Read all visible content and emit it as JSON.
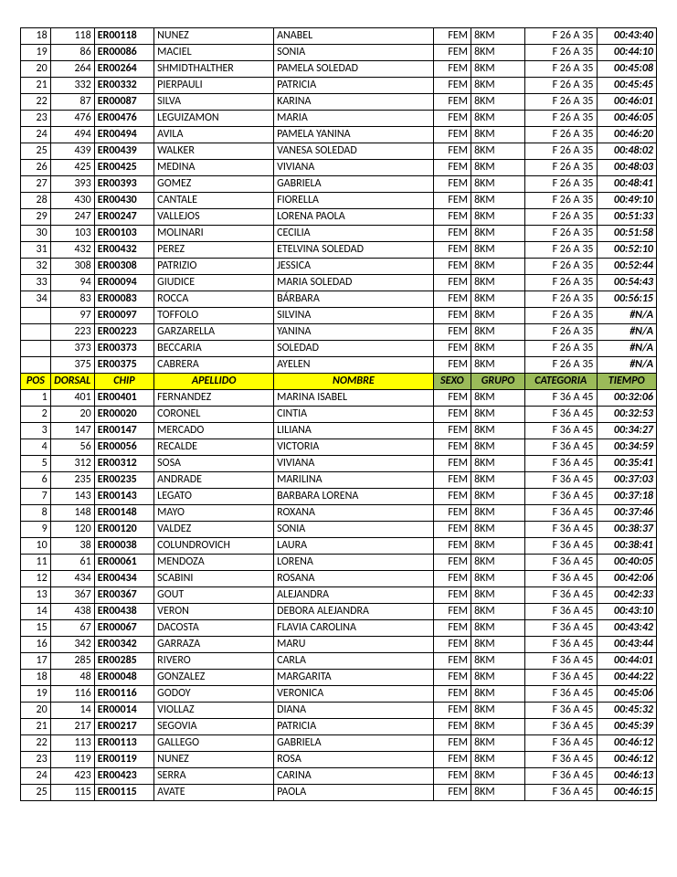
{
  "columns": [
    "POS",
    "DORSAL",
    "CHIP",
    "APELLIDO",
    "NOMBRE",
    "SEXO",
    "GRUPO",
    "CATEGORIA",
    "TIEMPO"
  ],
  "headerColors": [
    "yellow",
    "yellow",
    "yellow",
    "yellow",
    "yellow",
    "green",
    "green",
    "green",
    "green"
  ],
  "section1": [
    [
      "18",
      "118",
      "ER00118",
      "NUNEZ",
      "ANABEL",
      "FEM",
      "8KM",
      "F 26 A 35",
      "00:43:40"
    ],
    [
      "19",
      "86",
      "ER00086",
      "MACIEL",
      "SONIA",
      "FEM",
      "8KM",
      "F 26 A 35",
      "00:44:10"
    ],
    [
      "20",
      "264",
      "ER00264",
      "SHMIDTHALTHER",
      "PAMELA SOLEDAD",
      "FEM",
      "8KM",
      "F 26 A 35",
      "00:45:08"
    ],
    [
      "21",
      "332",
      "ER00332",
      "PIERPAULI",
      "PATRICIA",
      "FEM",
      "8KM",
      "F 26 A 35",
      "00:45:45"
    ],
    [
      "22",
      "87",
      "ER00087",
      "SILVA",
      "KARINA",
      "FEM",
      "8KM",
      "F 26 A 35",
      "00:46:01"
    ],
    [
      "23",
      "476",
      "ER00476",
      "LEGUIZAMON",
      "MARIA",
      "FEM",
      "8KM",
      "F 26 A 35",
      "00:46:05"
    ],
    [
      "24",
      "494",
      "ER00494",
      "AVILA",
      "PAMELA YANINA",
      "FEM",
      "8KM",
      "F 26 A 35",
      "00:46:20"
    ],
    [
      "25",
      "439",
      "ER00439",
      "WALKER",
      "VANESA SOLEDAD",
      "FEM",
      "8KM",
      "F 26 A 35",
      "00:48:02"
    ],
    [
      "26",
      "425",
      "ER00425",
      "MEDINA",
      "VIVIANA",
      "FEM",
      "8KM",
      "F 26 A 35",
      "00:48:03"
    ],
    [
      "27",
      "393",
      "ER00393",
      "GOMEZ",
      "GABRIELA",
      "FEM",
      "8KM",
      "F 26 A 35",
      "00:48:41"
    ],
    [
      "28",
      "430",
      "ER00430",
      "CANTALE",
      "FIORELLA",
      "FEM",
      "8KM",
      "F 26 A 35",
      "00:49:10"
    ],
    [
      "29",
      "247",
      "ER00247",
      "VALLEJOS",
      "LORENA PAOLA",
      "FEM",
      "8KM",
      "F 26 A 35",
      "00:51:33"
    ],
    [
      "30",
      "103",
      "ER00103",
      "MOLINARI",
      "CECILIA",
      "FEM",
      "8KM",
      "F 26 A 35",
      "00:51:58"
    ],
    [
      "31",
      "432",
      "ER00432",
      "PEREZ",
      "ETELVINA SOLEDAD",
      "FEM",
      "8KM",
      "F 26 A 35",
      "00:52:10"
    ],
    [
      "32",
      "308",
      "ER00308",
      "PATRIZIO",
      "JESSICA",
      "FEM",
      "8KM",
      "F 26 A 35",
      "00:52:44"
    ],
    [
      "33",
      "94",
      "ER00094",
      "GIUDICE",
      "MARIA SOLEDAD",
      "FEM",
      "8KM",
      "F 26 A 35",
      "00:54:43"
    ],
    [
      "34",
      "83",
      "ER00083",
      "ROCCA",
      "BÁRBARA",
      "FEM",
      "8KM",
      "F 26 A 35",
      "00:56:15"
    ],
    [
      "",
      "97",
      "ER00097",
      "TOFFOLO",
      "SILVINA",
      "FEM",
      "8KM",
      "F 26 A 35",
      "#N/A"
    ],
    [
      "",
      "223",
      "ER00223",
      "GARZARELLA",
      "YANINA",
      "FEM",
      "8KM",
      "F 26 A 35",
      "#N/A"
    ],
    [
      "",
      "373",
      "ER00373",
      "BECCARIA",
      "SOLEDAD",
      "FEM",
      "8KM",
      "F 26 A 35",
      "#N/A"
    ],
    [
      "",
      "375",
      "ER00375",
      "CABRERA",
      "AYELEN",
      "FEM",
      "8KM",
      "F 26 A 35",
      "#N/A"
    ]
  ],
  "section2": [
    [
      "1",
      "401",
      "ER00401",
      "FERNANDEZ",
      "MARINA ISABEL",
      "FEM",
      "8KM",
      "F 36 A 45",
      "00:32:06"
    ],
    [
      "2",
      "20",
      "ER00020",
      "CORONEL",
      "CINTIA",
      "FEM",
      "8KM",
      "F 36 A 45",
      "00:32:53"
    ],
    [
      "3",
      "147",
      "ER00147",
      "MERCADO",
      "LILIANA",
      "FEM",
      "8KM",
      "F 36 A 45",
      "00:34:27"
    ],
    [
      "4",
      "56",
      "ER00056",
      "RECALDE",
      "VICTORIA",
      "FEM",
      "8KM",
      "F 36 A 45",
      "00:34:59"
    ],
    [
      "5",
      "312",
      "ER00312",
      "SOSA",
      "VIVIANA",
      "FEM",
      "8KM",
      "F 36 A 45",
      "00:35:41"
    ],
    [
      "6",
      "235",
      "ER00235",
      "ANDRADE",
      "MARILINA",
      "FEM",
      "8KM",
      "F 36 A 45",
      "00:37:03"
    ],
    [
      "7",
      "143",
      "ER00143",
      "LEGATO",
      "BARBARA LORENA",
      "FEM",
      "8KM",
      "F 36 A 45",
      "00:37:18"
    ],
    [
      "8",
      "148",
      "ER00148",
      "MAYO",
      "ROXANA",
      "FEM",
      "8KM",
      "F 36 A 45",
      "00:37:46"
    ],
    [
      "9",
      "120",
      "ER00120",
      "VALDEZ",
      "SONIA",
      "FEM",
      "8KM",
      "F 36 A 45",
      "00:38:37"
    ],
    [
      "10",
      "38",
      "ER00038",
      "COLUNDROVICH",
      "LAURA",
      "FEM",
      "8KM",
      "F 36 A 45",
      "00:38:41"
    ],
    [
      "11",
      "61",
      "ER00061",
      "MENDOZA",
      "LORENA",
      "FEM",
      "8KM",
      "F 36 A 45",
      "00:40:05"
    ],
    [
      "12",
      "434",
      "ER00434",
      "SCABINI",
      "ROSANA",
      "FEM",
      "8KM",
      "F 36 A 45",
      "00:42:06"
    ],
    [
      "13",
      "367",
      "ER00367",
      "GOUT",
      "ALEJANDRA",
      "FEM",
      "8KM",
      "F 36 A 45",
      "00:42:33"
    ],
    [
      "14",
      "438",
      "ER00438",
      "VERON",
      "DEBORA ALEJANDRA",
      "FEM",
      "8KM",
      "F 36 A 45",
      "00:43:10"
    ],
    [
      "15",
      "67",
      "ER00067",
      "DACOSTA",
      "FLAVIA CAROLINA",
      "FEM",
      "8KM",
      "F 36 A 45",
      "00:43:42"
    ],
    [
      "16",
      "342",
      "ER00342",
      "GARRAZA",
      "MARU",
      "FEM",
      "8KM",
      "F 36 A 45",
      "00:43:44"
    ],
    [
      "17",
      "285",
      "ER00285",
      "RIVERO",
      "CARLA",
      "FEM",
      "8KM",
      "F 36 A 45",
      "00:44:01"
    ],
    [
      "18",
      "48",
      "ER00048",
      "GONZALEZ",
      "MARGARITA",
      "FEM",
      "8KM",
      "F 36 A 45",
      "00:44:22"
    ],
    [
      "19",
      "116",
      "ER00116",
      "GODOY",
      "VERONICA",
      "FEM",
      "8KM",
      "F 36 A 45",
      "00:45:06"
    ],
    [
      "20",
      "14",
      "ER00014",
      "VIOLLAZ",
      "DIANA",
      "FEM",
      "8KM",
      "F 36 A 45",
      "00:45:32"
    ],
    [
      "21",
      "217",
      "ER00217",
      "SEGOVIA",
      "PATRICIA",
      "FEM",
      "8KM",
      "F 36 A 45",
      "00:45:39"
    ],
    [
      "22",
      "113",
      "ER00113",
      "GALLEGO",
      "GABRIELA",
      "FEM",
      "8KM",
      "F 36 A 45",
      "00:46:12"
    ],
    [
      "23",
      "119",
      "ER00119",
      "NUNEZ",
      "ROSA",
      "FEM",
      "8KM",
      "F 36 A 45",
      "00:46:12"
    ],
    [
      "24",
      "423",
      "ER00423",
      "SERRA",
      "CARINA",
      "FEM",
      "8KM",
      "F 36 A 45",
      "00:46:13"
    ],
    [
      "25",
      "115",
      "ER00115",
      "AVATE",
      "PAOLA",
      "FEM",
      "8KM",
      "F 36 A 45",
      "00:46:15"
    ]
  ]
}
